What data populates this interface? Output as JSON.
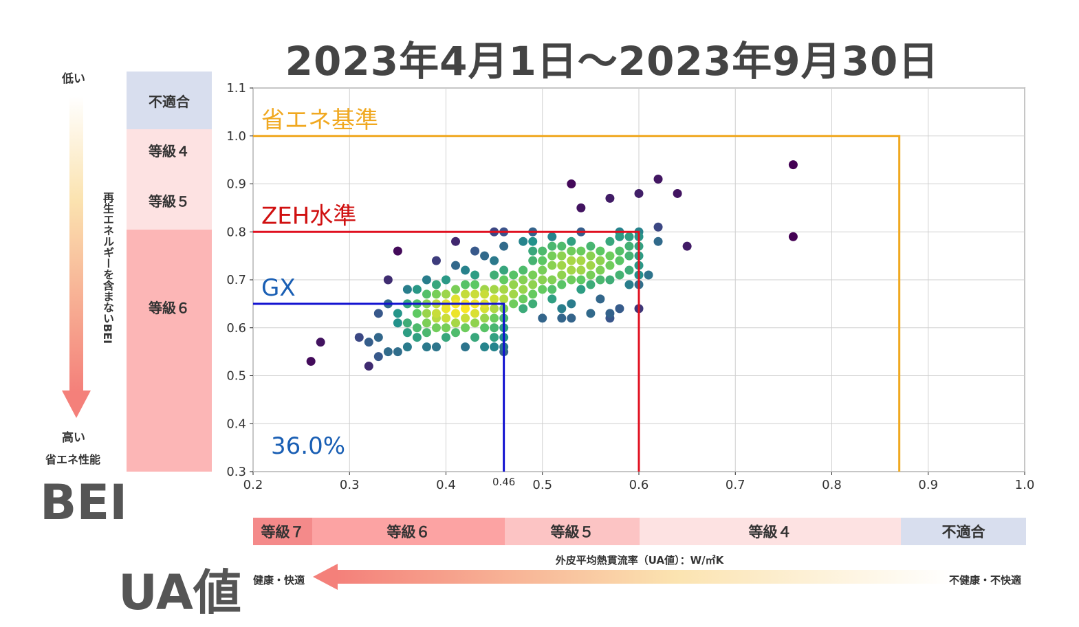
{
  "title": "2023年4月1日〜2023年9月30日",
  "left_panel": {
    "low": "低い",
    "high": "高い",
    "perf": "省エネ性能",
    "vertical_text": "再生エネルギーを含まないBEI",
    "axis_name": "BEI"
  },
  "grades_vertical": [
    {
      "label": "不適合",
      "color": "#d8deee"
    },
    {
      "label": "等級４",
      "color": "#fde2e2"
    },
    {
      "label": "等級５",
      "color": "#fde2e2"
    },
    {
      "label": "等級６",
      "color": "#fcb6b6"
    }
  ],
  "grades_horizontal": [
    {
      "label": "等級７",
      "color": "#f48a8a"
    },
    {
      "label": "等級６",
      "color": "#fca3a3"
    },
    {
      "label": "等級５",
      "color": "#fcc4c4"
    },
    {
      "label": "等級４",
      "color": "#fde2e2"
    },
    {
      "label": "不適合",
      "color": "#d8deee"
    }
  ],
  "ua_axis": {
    "name": "UA値",
    "unit_text": "外皮平均熱貫流率（UA値）：W/㎡K",
    "left_text": "健康・快適",
    "right_text": "不健康・不快適"
  },
  "chart_data": {
    "type": "scatter",
    "xlim": [
      0.2,
      1.0
    ],
    "ylim": [
      0.3,
      1.1
    ],
    "xticks": [
      "0.2",
      "0.3",
      "0.4",
      "0.5",
      "0.6",
      "0.7",
      "0.8",
      "0.9",
      "1.0"
    ],
    "yticks": [
      "0.3",
      "0.4",
      "0.5",
      "0.6",
      "0.7",
      "0.8",
      "0.9",
      "1.0",
      "1.1"
    ],
    "extra_xtick": "0.46",
    "grid": true,
    "thresholds": [
      {
        "name": "省エネ基準",
        "x": 0.87,
        "y": 1.0,
        "color": "#f0a820",
        "label_color": "#f0a820"
      },
      {
        "name": "ZEH水準",
        "x": 0.6,
        "y": 0.8,
        "color": "#e01020",
        "label_color": "#d01010"
      },
      {
        "name": "GX",
        "x": 0.46,
        "y": 0.65,
        "color": "#1010d0",
        "label_color": "#1a5fb4"
      }
    ],
    "annotation": {
      "text": "36.0%",
      "color": "#1a5fb4"
    },
    "points": [
      [
        0.26,
        0.53
      ],
      [
        0.27,
        0.57
      ],
      [
        0.31,
        0.58
      ],
      [
        0.32,
        0.52
      ],
      [
        0.32,
        0.57
      ],
      [
        0.33,
        0.54
      ],
      [
        0.33,
        0.58
      ],
      [
        0.34,
        0.55
      ],
      [
        0.34,
        0.7
      ],
      [
        0.35,
        0.76
      ],
      [
        0.33,
        0.63
      ],
      [
        0.34,
        0.65
      ],
      [
        0.35,
        0.55
      ],
      [
        0.35,
        0.61
      ],
      [
        0.35,
        0.63
      ],
      [
        0.36,
        0.56
      ],
      [
        0.36,
        0.59
      ],
      [
        0.36,
        0.61
      ],
      [
        0.36,
        0.65
      ],
      [
        0.36,
        0.68
      ],
      [
        0.37,
        0.58
      ],
      [
        0.37,
        0.6
      ],
      [
        0.37,
        0.63
      ],
      [
        0.37,
        0.65
      ],
      [
        0.37,
        0.68
      ],
      [
        0.38,
        0.56
      ],
      [
        0.38,
        0.59
      ],
      [
        0.38,
        0.61
      ],
      [
        0.38,
        0.63
      ],
      [
        0.38,
        0.65
      ],
      [
        0.38,
        0.67
      ],
      [
        0.38,
        0.7
      ],
      [
        0.39,
        0.56
      ],
      [
        0.39,
        0.6
      ],
      [
        0.39,
        0.62
      ],
      [
        0.39,
        0.63
      ],
      [
        0.39,
        0.65
      ],
      [
        0.39,
        0.67
      ],
      [
        0.39,
        0.69
      ],
      [
        0.39,
        0.74
      ],
      [
        0.4,
        0.58
      ],
      [
        0.4,
        0.6
      ],
      [
        0.4,
        0.62
      ],
      [
        0.4,
        0.64
      ],
      [
        0.4,
        0.65
      ],
      [
        0.4,
        0.67
      ],
      [
        0.4,
        0.7
      ],
      [
        0.41,
        0.59
      ],
      [
        0.41,
        0.61
      ],
      [
        0.41,
        0.63
      ],
      [
        0.41,
        0.65
      ],
      [
        0.41,
        0.66
      ],
      [
        0.41,
        0.68
      ],
      [
        0.41,
        0.73
      ],
      [
        0.41,
        0.78
      ],
      [
        0.42,
        0.56
      ],
      [
        0.42,
        0.6
      ],
      [
        0.42,
        0.62
      ],
      [
        0.42,
        0.64
      ],
      [
        0.42,
        0.65
      ],
      [
        0.42,
        0.67
      ],
      [
        0.42,
        0.69
      ],
      [
        0.42,
        0.72
      ],
      [
        0.43,
        0.58
      ],
      [
        0.43,
        0.61
      ],
      [
        0.43,
        0.63
      ],
      [
        0.43,
        0.65
      ],
      [
        0.43,
        0.67
      ],
      [
        0.43,
        0.69
      ],
      [
        0.43,
        0.71
      ],
      [
        0.43,
        0.76
      ],
      [
        0.44,
        0.56
      ],
      [
        0.44,
        0.6
      ],
      [
        0.44,
        0.62
      ],
      [
        0.44,
        0.64
      ],
      [
        0.44,
        0.65
      ],
      [
        0.44,
        0.67
      ],
      [
        0.44,
        0.68
      ],
      [
        0.44,
        0.75
      ],
      [
        0.45,
        0.56
      ],
      [
        0.45,
        0.58
      ],
      [
        0.45,
        0.6
      ],
      [
        0.45,
        0.62
      ],
      [
        0.45,
        0.64
      ],
      [
        0.45,
        0.66
      ],
      [
        0.45,
        0.68
      ],
      [
        0.45,
        0.71
      ],
      [
        0.45,
        0.74
      ],
      [
        0.45,
        0.8
      ],
      [
        0.46,
        0.55
      ],
      [
        0.46,
        0.56
      ],
      [
        0.46,
        0.58
      ],
      [
        0.46,
        0.6
      ],
      [
        0.46,
        0.62
      ],
      [
        0.46,
        0.64
      ],
      [
        0.46,
        0.66
      ],
      [
        0.46,
        0.68
      ],
      [
        0.46,
        0.7
      ],
      [
        0.46,
        0.72
      ],
      [
        0.46,
        0.77
      ],
      [
        0.46,
        0.8
      ],
      [
        0.47,
        0.65
      ],
      [
        0.47,
        0.67
      ],
      [
        0.47,
        0.69
      ],
      [
        0.47,
        0.71
      ],
      [
        0.48,
        0.64
      ],
      [
        0.48,
        0.66
      ],
      [
        0.48,
        0.68
      ],
      [
        0.48,
        0.7
      ],
      [
        0.48,
        0.72
      ],
      [
        0.48,
        0.78
      ],
      [
        0.49,
        0.65
      ],
      [
        0.49,
        0.67
      ],
      [
        0.49,
        0.69
      ],
      [
        0.49,
        0.71
      ],
      [
        0.49,
        0.74
      ],
      [
        0.49,
        0.76
      ],
      [
        0.49,
        0.78
      ],
      [
        0.49,
        0.8
      ],
      [
        0.5,
        0.62
      ],
      [
        0.5,
        0.68
      ],
      [
        0.5,
        0.7
      ],
      [
        0.5,
        0.72
      ],
      [
        0.5,
        0.74
      ],
      [
        0.5,
        0.76
      ],
      [
        0.51,
        0.66
      ],
      [
        0.51,
        0.68
      ],
      [
        0.51,
        0.7
      ],
      [
        0.51,
        0.73
      ],
      [
        0.51,
        0.75
      ],
      [
        0.51,
        0.77
      ],
      [
        0.51,
        0.79
      ],
      [
        0.52,
        0.64
      ],
      [
        0.52,
        0.69
      ],
      [
        0.52,
        0.71
      ],
      [
        0.52,
        0.73
      ],
      [
        0.52,
        0.75
      ],
      [
        0.52,
        0.77
      ],
      [
        0.52,
        0.62
      ],
      [
        0.53,
        0.62
      ],
      [
        0.53,
        0.65
      ],
      [
        0.53,
        0.7
      ],
      [
        0.53,
        0.72
      ],
      [
        0.53,
        0.74
      ],
      [
        0.53,
        0.76
      ],
      [
        0.53,
        0.78
      ],
      [
        0.53,
        0.9
      ],
      [
        0.54,
        0.68
      ],
      [
        0.54,
        0.7
      ],
      [
        0.54,
        0.72
      ],
      [
        0.54,
        0.74
      ],
      [
        0.54,
        0.76
      ],
      [
        0.54,
        0.8
      ],
      [
        0.54,
        0.85
      ],
      [
        0.55,
        0.63
      ],
      [
        0.55,
        0.69
      ],
      [
        0.55,
        0.71
      ],
      [
        0.55,
        0.73
      ],
      [
        0.55,
        0.75
      ],
      [
        0.55,
        0.77
      ],
      [
        0.56,
        0.66
      ],
      [
        0.56,
        0.7
      ],
      [
        0.56,
        0.72
      ],
      [
        0.56,
        0.74
      ],
      [
        0.56,
        0.76
      ],
      [
        0.57,
        0.62
      ],
      [
        0.57,
        0.63
      ],
      [
        0.57,
        0.7
      ],
      [
        0.57,
        0.73
      ],
      [
        0.57,
        0.75
      ],
      [
        0.57,
        0.78
      ],
      [
        0.57,
        0.87
      ],
      [
        0.58,
        0.64
      ],
      [
        0.58,
        0.71
      ],
      [
        0.58,
        0.74
      ],
      [
        0.58,
        0.76
      ],
      [
        0.58,
        0.79
      ],
      [
        0.58,
        0.8
      ],
      [
        0.59,
        0.69
      ],
      [
        0.59,
        0.72
      ],
      [
        0.59,
        0.75
      ],
      [
        0.59,
        0.77
      ],
      [
        0.59,
        0.79
      ],
      [
        0.6,
        0.64
      ],
      [
        0.6,
        0.69
      ],
      [
        0.6,
        0.71
      ],
      [
        0.6,
        0.73
      ],
      [
        0.6,
        0.75
      ],
      [
        0.6,
        0.77
      ],
      [
        0.6,
        0.79
      ],
      [
        0.6,
        0.8
      ],
      [
        0.6,
        0.88
      ],
      [
        0.61,
        0.71
      ],
      [
        0.62,
        0.78
      ],
      [
        0.62,
        0.81
      ],
      [
        0.62,
        0.91
      ],
      [
        0.64,
        0.88
      ],
      [
        0.65,
        0.77
      ],
      [
        0.76,
        0.79
      ],
      [
        0.76,
        0.94
      ]
    ]
  }
}
